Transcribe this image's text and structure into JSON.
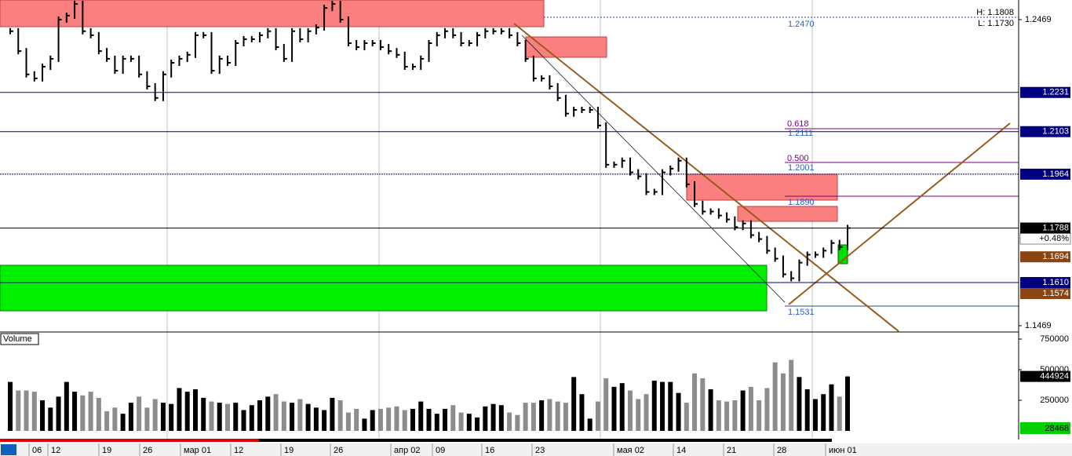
{
  "chart_data": [
    {
      "type": "ohlc",
      "values": [
        1.2431,
        1.2366,
        1.229,
        1.2277,
        1.2315,
        1.2341,
        1.2469,
        1.2482,
        1.252,
        1.2431,
        1.2418,
        1.2366,
        1.2341,
        1.2302,
        1.2341,
        1.2341,
        1.229,
        1.2251,
        1.2213,
        1.229,
        1.2328,
        1.2341,
        1.2354,
        1.2418,
        1.2418,
        1.2302,
        1.2341,
        1.2328,
        1.2392,
        1.2405,
        1.2405,
        1.2418,
        1.2431,
        1.2379,
        1.2341,
        1.2431,
        1.2405,
        1.2431,
        1.2443,
        1.2507,
        1.252,
        1.2469,
        1.2392,
        1.2379,
        1.2392,
        1.2392,
        1.2379,
        1.2366,
        1.2354,
        1.2315,
        1.2315,
        1.2341,
        1.2392,
        1.2418,
        1.2431,
        1.2418,
        1.2392,
        1.2392,
        1.2418,
        1.2431,
        1.2431,
        1.2431,
        1.2418,
        1.2392,
        1.2341,
        1.2277,
        1.2277,
        1.2251,
        1.2213,
        1.2162,
        1.2174,
        1.2174,
        1.2174,
        1.2123,
        1.1995,
        1.1995,
        1.2008,
        1.197,
        1.1957,
        1.1906,
        1.1906,
        1.197,
        1.1982,
        1.2008,
        1.1931,
        1.1867,
        1.1842,
        1.1842,
        1.1829,
        1.1816,
        1.1791,
        1.1803,
        1.1765,
        1.1752,
        1.1714,
        1.1688,
        1.1637,
        1.1624,
        1.1675,
        1.1701,
        1.1701,
        1.1714,
        1.1739,
        1.1726,
        1.1788
      ],
      "color": "#000000",
      "ylim": [
        1.1451,
        1.2533
      ],
      "yticks": [
        1.2469,
        1.1469
      ],
      "levels": [
        {
          "value": 1.2231,
          "color": "#000080",
          "line": true
        },
        {
          "value": 1.2103,
          "color": "#000080",
          "line": true
        },
        {
          "value": 1.1964,
          "color": "#000080",
          "line": true
        },
        {
          "value": 1.1788,
          "color": "#000000",
          "line": true
        },
        {
          "value": 1.1694,
          "color": "#8b4513",
          "line": false
        },
        {
          "value": 1.161,
          "label": "1.1610",
          "color": "#000080",
          "line": true
        },
        {
          "value": 1.1574,
          "color": "#8b4513",
          "line": false
        }
      ],
      "change": "+0.48%",
      "high_label": "H: 1.1808",
      "low_label": "L: 1.1730",
      "fib_labels": [
        "1.2470",
        "0.618",
        "1.2111",
        "0.500",
        "1.2001",
        "1.1890",
        "1.1531"
      ]
    },
    {
      "type": "bar",
      "label": "Volume",
      "values": [
        400000,
        330000,
        330000,
        320000,
        250000,
        190000,
        280000,
        400000,
        320000,
        290000,
        320000,
        270000,
        160000,
        190000,
        140000,
        230000,
        280000,
        190000,
        260000,
        230000,
        220000,
        350000,
        320000,
        340000,
        270000,
        240000,
        230000,
        220000,
        230000,
        170000,
        210000,
        250000,
        280000,
        300000,
        240000,
        230000,
        260000,
        220000,
        190000,
        170000,
        270000,
        250000,
        150000,
        180000,
        100000,
        170000,
        180000,
        190000,
        200000,
        170000,
        180000,
        240000,
        180000,
        140000,
        180000,
        210000,
        150000,
        140000,
        110000,
        200000,
        220000,
        210000,
        150000,
        130000,
        230000,
        230000,
        250000,
        260000,
        240000,
        230000,
        440000,
        300000,
        100000,
        240000,
        430000,
        360000,
        390000,
        330000,
        260000,
        300000,
        410000,
        400000,
        400000,
        310000,
        230000,
        470000,
        430000,
        340000,
        250000,
        240000,
        250000,
        330000,
        360000,
        250000,
        350000,
        560000,
        470000,
        580000,
        440000,
        340000,
        260000,
        300000,
        380000,
        280000,
        444924
      ],
      "ylim": [
        0,
        795000
      ],
      "yticks": [
        750000,
        500000,
        250000
      ],
      "indicator": 28468
    }
  ],
  "x_labels": [
    "06",
    "12",
    "19",
    "26",
    "мар 01",
    "12",
    "19",
    "26",
    "апр 02",
    "09",
    "16",
    "23",
    "мая 02",
    "14",
    "21",
    "28",
    "июн 01"
  ]
}
